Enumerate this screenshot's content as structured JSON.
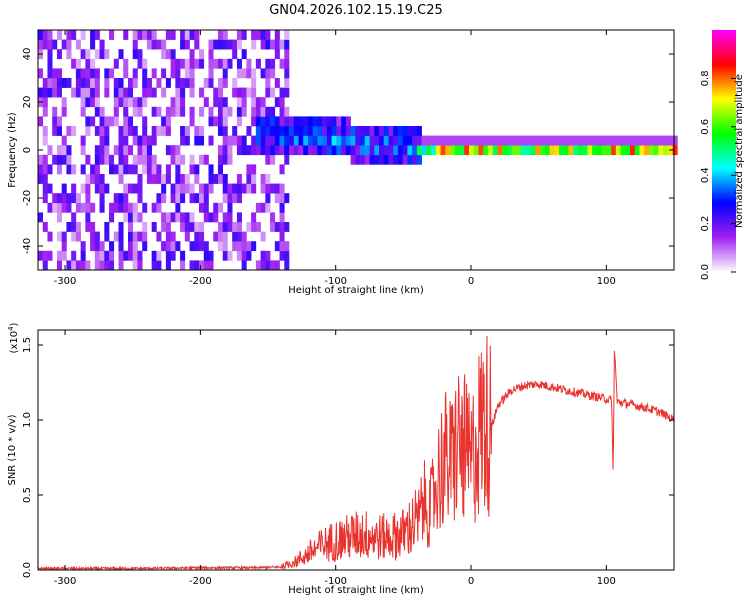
{
  "figure": {
    "title": "GN04.2026.102.15.19.C25"
  },
  "chart_data": [
    {
      "type": "heatmap",
      "xlabel": "Height of straight line (km)",
      "ylabel": "Frequency (Hz)",
      "xlim": [
        -320,
        150
      ],
      "ylim": [
        -50,
        50
      ],
      "xticks": [
        -300,
        -200,
        -100,
        0,
        100
      ],
      "xtick_labels": [
        "-300",
        "-200",
        "-100",
        "0",
        "100"
      ],
      "yticks": [
        -40,
        -20,
        0,
        20,
        40
      ],
      "ytick_labels": [
        "-40",
        "-20",
        "0",
        "20",
        "40"
      ],
      "colorbar": {
        "label": "Normalized spectral amplitude",
        "range": [
          0,
          1
        ],
        "ticks": [
          0.0,
          0.2,
          0.4,
          0.6,
          0.8
        ],
        "tick_labels": [
          "0.0",
          "0.2",
          "0.4",
          "0.6",
          "0.8"
        ],
        "colormap": [
          "#ffffff",
          "#a020f0",
          "#0000ff",
          "#00ffff",
          "#00ff00",
          "#ffff00",
          "#ff0000",
          "#ff00ff"
        ]
      },
      "regions": [
        {
          "description": "noise",
          "x_range": [
            -320,
            -135
          ],
          "freq_range": [
            -50,
            50
          ],
          "amplitude": [
            0.05,
            0.25
          ]
        },
        {
          "description": "signal onset",
          "x_range": [
            -160,
            -40
          ],
          "freq_center": 8,
          "freq_halfwidth": 8,
          "amplitude": [
            0.2,
            0.45
          ]
        },
        {
          "description": "tracked signal",
          "x_range": [
            -40,
            150
          ],
          "freq_center": 1,
          "freq_halfwidth": 3,
          "amplitude": [
            0.4,
            1.0
          ]
        }
      ]
    },
    {
      "type": "line",
      "xlabel": "Height of straight line (km)",
      "ylabel": "SNR (10 * v/v)",
      "scale_label": "(x10",
      "scale_exponent": "4",
      "xlim": [
        -320,
        150
      ],
      "ylim": [
        0,
        1.6
      ],
      "xticks": [
        -300,
        -200,
        -100,
        0,
        100
      ],
      "xtick_labels": [
        "-300",
        "-200",
        "-100",
        "0",
        "100"
      ],
      "yticks": [
        0,
        0.5,
        1.0,
        1.5
      ],
      "ytick_labels": [
        "0.0",
        "0.5",
        "1.0",
        "1.5"
      ],
      "color": "#e8332e",
      "series": [
        {
          "name": "SNR",
          "x": [
            -320,
            -300,
            -250,
            -200,
            -160,
            -140,
            -130,
            -120,
            -110,
            -100,
            -90,
            -80,
            -70,
            -60,
            -50,
            -40,
            -35,
            -30,
            -25,
            -20,
            -15,
            -10,
            -5,
            0,
            5,
            10,
            15,
            20,
            30,
            40,
            50,
            60,
            70,
            80,
            90,
            100,
            104,
            105,
            106,
            108,
            110,
            120,
            130,
            140,
            150
          ],
          "y": [
            0.01,
            0.01,
            0.01,
            0.015,
            0.015,
            0.02,
            0.05,
            0.1,
            0.15,
            0.18,
            0.2,
            0.22,
            0.2,
            0.2,
            0.22,
            0.3,
            0.45,
            0.4,
            0.6,
            0.75,
            0.7,
            0.85,
            0.8,
            0.7,
            0.9,
            1.0,
            0.95,
            1.1,
            1.2,
            1.23,
            1.24,
            1.22,
            1.2,
            1.18,
            1.16,
            1.14,
            1.13,
            0.6,
            1.5,
            1.12,
            1.12,
            1.1,
            1.08,
            1.05,
            1.0
          ]
        }
      ]
    }
  ]
}
